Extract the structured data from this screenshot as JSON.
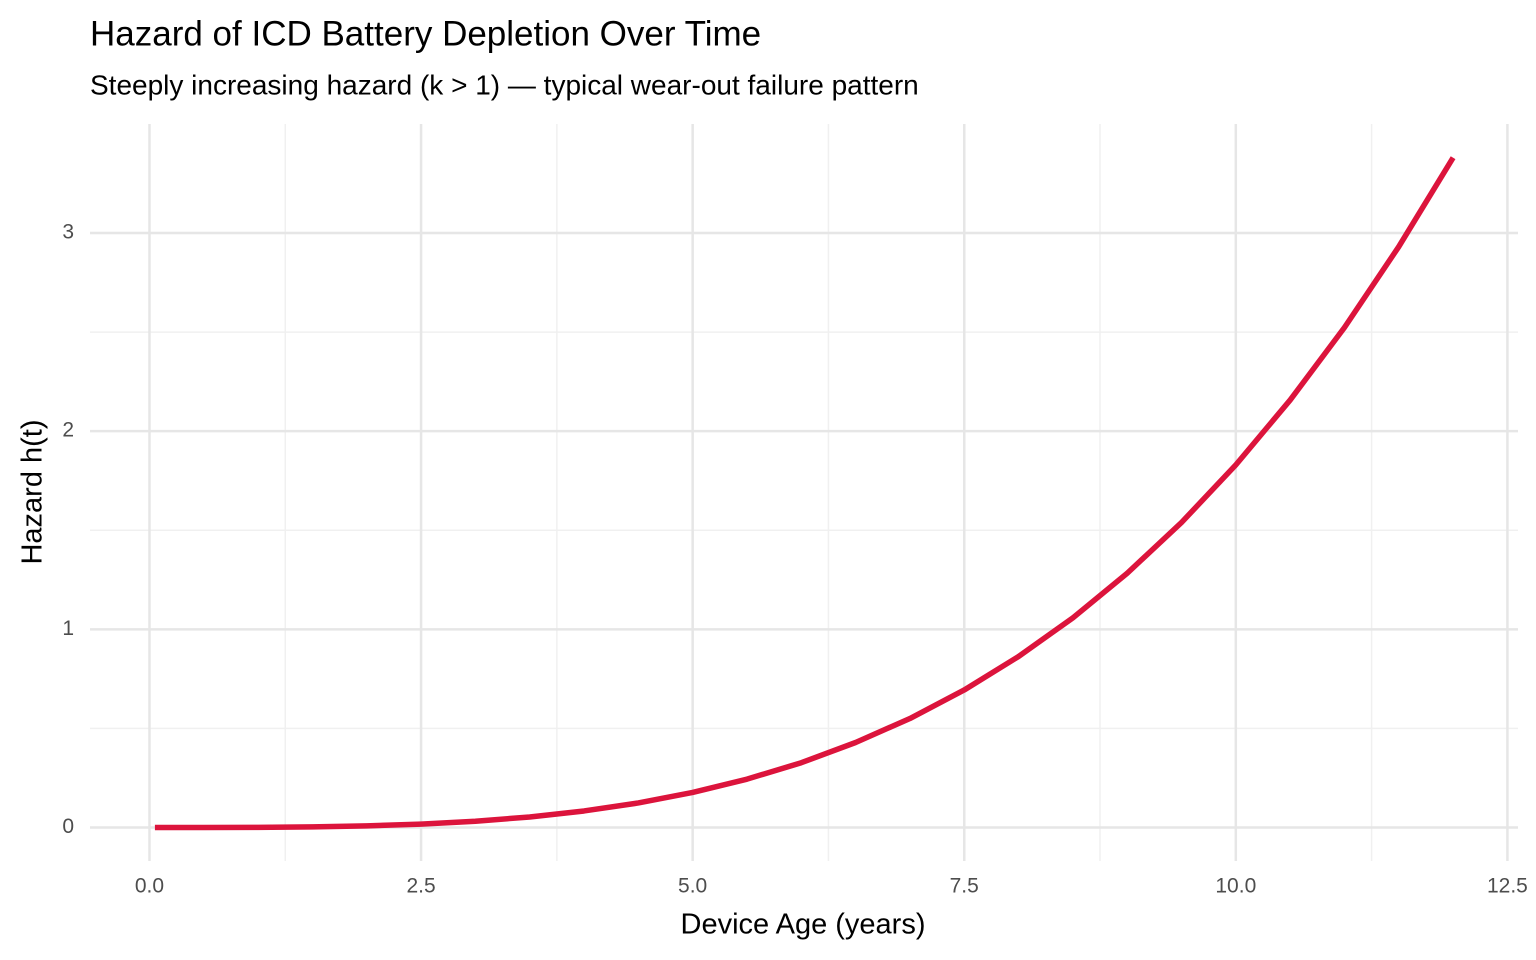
{
  "chart_data": {
    "type": "line",
    "title": "Hazard of ICD Battery Depletion Over Time",
    "subtitle": "Steeply increasing hazard (k > 1) — typical wear-out failure pattern",
    "x_label": "Device Age (years)",
    "y_label": "Hazard h(t)",
    "x": [
      0.05,
      0.5,
      1.0,
      1.5,
      2.0,
      2.5,
      3.0,
      3.5,
      4.0,
      4.5,
      5.0,
      5.5,
      6.0,
      6.5,
      7.0,
      7.5,
      8.0,
      8.5,
      9.0,
      9.5,
      10.0,
      10.5,
      11.0,
      11.5,
      12.0
    ],
    "values": [
      0,
      0.0001,
      0.0008,
      0.0031,
      0.0081,
      0.0171,
      0.0317,
      0.0532,
      0.0835,
      0.124,
      0.177,
      0.244,
      0.327,
      0.429,
      0.55,
      0.694,
      0.863,
      1.058,
      1.283,
      1.539,
      1.83,
      2.157,
      2.523,
      2.931,
      3.38
    ],
    "color": "#dc143c",
    "xlim": [
      -0.5475,
      12.5975
    ],
    "ylim": [
      -0.169,
      3.55
    ],
    "xticks": [
      {
        "value": 0,
        "label": "0.0"
      },
      2.5,
      {
        "value": 5,
        "label": "5.0"
      },
      7.5,
      {
        "value": 10,
        "label": "10.0"
      },
      12.5
    ],
    "yticks": [
      0,
      1,
      2,
      3
    ],
    "grid": true
  }
}
